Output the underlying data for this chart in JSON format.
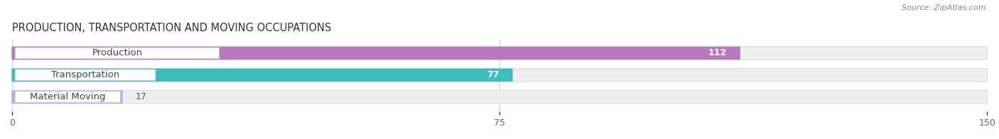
{
  "title": "PRODUCTION, TRANSPORTATION AND MOVING OCCUPATIONS",
  "source": "Source: ZipAtlas.com",
  "categories": [
    "Production",
    "Transportation",
    "Material Moving"
  ],
  "values": [
    112,
    77,
    17
  ],
  "bar_colors": [
    "#b87abd",
    "#3dbdbc",
    "#aab4e8"
  ],
  "bar_bg_color": "#efefef",
  "xlim": [
    0,
    150
  ],
  "xticks": [
    0,
    75,
    150
  ],
  "title_fontsize": 10.5,
  "label_fontsize": 9.5,
  "value_fontsize": 9,
  "bar_height": 0.52,
  "background_color": "#ffffff",
  "value_inside_threshold": 25
}
